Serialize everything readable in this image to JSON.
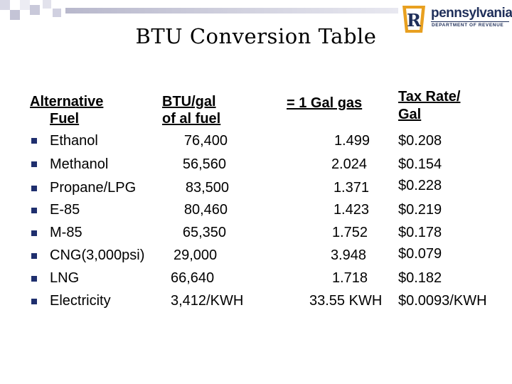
{
  "title": "BTU Conversion Table",
  "logo": {
    "brand": "pennsylvania",
    "department": "DEPARTMENT OF REVENUE",
    "monogram": "R",
    "colors": {
      "navy": "#1f2f5a",
      "gold": "#e8a020"
    }
  },
  "headers": {
    "fuel_line1": "Alternative",
    "fuel_line2": "Fuel",
    "btu_line1": "BTU/gal",
    "btu_line2": "of al fuel",
    "equiv": "= 1 Gal gas",
    "tax_line1": "Tax Rate/",
    "tax_line2": "Gal"
  },
  "bullet_icon": "square-bullet",
  "rows": [
    {
      "fuel": "Ethanol",
      "btu": "76,400",
      "equiv": "1.499",
      "tax": "$0.208"
    },
    {
      "fuel": "Methanol",
      "btu": "56,560",
      "equiv": "2.024",
      "tax": "$0.154"
    },
    {
      "fuel": "Propane/LPG",
      "btu": "83,500",
      "equiv": "1.371",
      "tax": "$0.228"
    },
    {
      "fuel": "E-85",
      "btu": "80,460",
      "equiv": "1.423",
      "tax": "$0.219"
    },
    {
      "fuel": "M-85",
      "btu": "65,350",
      "equiv": "1.752",
      "tax": "$0.178"
    },
    {
      "fuel": "CNG(3,000psi)",
      "btu": "29,000",
      "equiv": "3.948",
      "tax": "$0.079"
    },
    {
      "fuel": "LNG",
      "btu": "66,640",
      "equiv": "1.718",
      "tax": "$0.182"
    },
    {
      "fuel": "Electricity",
      "btu": "3,412/KWH",
      "equiv": "33.55 KWH",
      "tax": "$0.0093/KWH"
    }
  ]
}
